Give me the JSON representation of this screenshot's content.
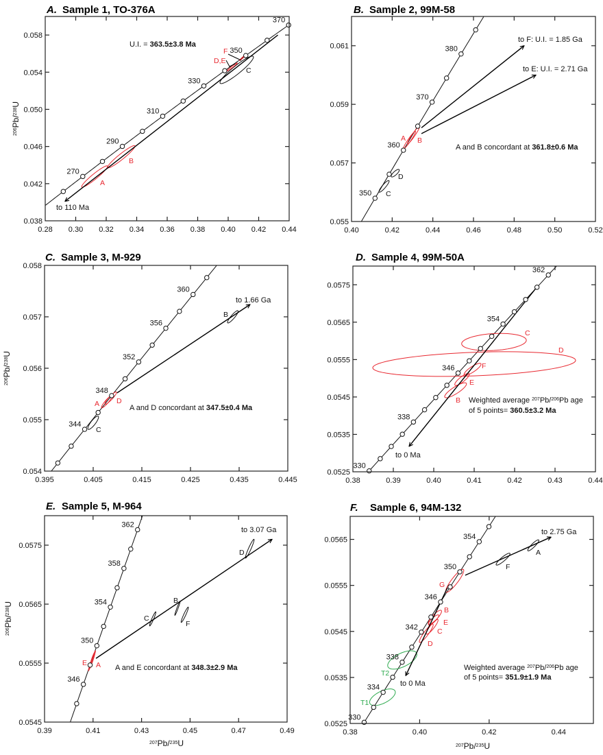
{
  "colors": {
    "data_red": "#e8272f",
    "data_black": "#111111",
    "data_green": "#2daa4e"
  },
  "chart_data": [
    {
      "type": "scatter",
      "subtype": "U-Pb concordia diagram",
      "panel_letter": "A.",
      "title": "Sample 1, TO-376A",
      "xlim": [
        0.28,
        0.44
      ],
      "ylim": [
        0.038,
        0.06
      ],
      "xticks": [
        "0.28",
        "0.30",
        "0.32",
        "0.34",
        "0.36",
        "0.38",
        "0.40",
        "0.42",
        "0.44"
      ],
      "yticks": [
        "0.038",
        "0.042",
        "0.046",
        "0.050",
        "0.054",
        "0.058"
      ],
      "ylabel": [
        {
          "t": "206",
          "sup": true
        },
        {
          "t": "Pb/"
        },
        {
          "t": "238",
          "sup": true
        },
        {
          "t": "U"
        }
      ],
      "xlabel": [],
      "concordia": {
        "ages_ma": [
          260,
          270,
          280,
          290,
          300,
          310,
          320,
          330,
          340,
          350,
          360,
          370
        ],
        "labeled_ages": [
          "270",
          "290",
          "310",
          "330",
          "350",
          "370"
        ]
      },
      "ellipses": [
        {
          "label": "A",
          "x": 0.3124,
          "y": 0.04277,
          "sx": 0.0085,
          "sy": 0.00115,
          "rho": 0.95,
          "color": "#e8272f"
        },
        {
          "label": "B",
          "x": 0.3299,
          "y": 0.0449,
          "sx": 0.009,
          "sy": 0.0012,
          "rho": 0.95,
          "color": "#e8272f"
        },
        {
          "label": "C",
          "x": 0.4056,
          "y": 0.05425,
          "sx": 0.011,
          "sy": 0.00148,
          "rho": 0.93,
          "color": "#111111"
        },
        {
          "label": "D,E",
          "x": 0.4025,
          "y": 0.05455,
          "sx": 0.0035,
          "sy": 0.00045,
          "rho": 0.98,
          "color": "#e8272f"
        },
        {
          "label": "F",
          "x": 0.4094,
          "y": 0.05555,
          "sx": 0.002,
          "sy": 0.0003,
          "rho": 0.97,
          "color": "#e8272f"
        }
      ],
      "lines": [
        {
          "from": [
            0.4326,
            0.058
          ],
          "to": [
            0.293,
            0.0401
          ],
          "arrow": true
        }
      ],
      "annotations": [
        [
          {
            "t": "U.I. = "
          },
          {
            "t": "363.5±3.8 Ma",
            "b": true
          }
        ],
        [
          {
            "t": "to 110 Ma"
          }
        ]
      ]
    },
    {
      "type": "scatter",
      "subtype": "U-Pb concordia diagram",
      "panel_letter": "B.",
      "title": "Sample 2, 99M-58",
      "xlim": [
        0.4,
        0.52
      ],
      "ylim": [
        0.055,
        0.062
      ],
      "xticks": [
        "0.40",
        "0.42",
        "0.44",
        "0.46",
        "0.48",
        "0.50",
        "0.52"
      ],
      "yticks": [
        "0.055",
        "0.057",
        "0.059",
        "0.061"
      ],
      "ylabel": [],
      "xlabel": [],
      "concordia": {
        "ages_ma": [
          350,
          355,
          360,
          365,
          370,
          375,
          380,
          385
        ],
        "labeled_ages": [
          "350",
          "360",
          "370",
          "380"
        ]
      },
      "ellipses": [
        {
          "label": "A",
          "x": 0.4285,
          "y": 0.05778,
          "sx": 0.003,
          "sy": 0.0003,
          "rho": 0.96,
          "color": "#e8272f"
        },
        {
          "label": "B",
          "x": 0.4305,
          "y": 0.05795,
          "sx": 0.003,
          "sy": 0.0003,
          "rho": 0.96,
          "color": "#e8272f"
        },
        {
          "label": "C",
          "x": 0.416,
          "y": 0.0562,
          "sx": 0.0025,
          "sy": 0.0002,
          "rho": 0.9,
          "color": "#111111"
        },
        {
          "label": "D",
          "x": 0.4215,
          "y": 0.05665,
          "sx": 0.002,
          "sy": 0.00013,
          "rho": 0.8,
          "color": "#111111"
        }
      ],
      "lines": [
        {
          "from": [
            0.4344,
            0.0582
          ],
          "to": [
            0.4849,
            0.061
          ],
          "arrow": true
        },
        {
          "from": [
            0.4344,
            0.058
          ],
          "to": [
            0.4907,
            0.06
          ],
          "arrow": true
        }
      ],
      "annotations": [
        [
          {
            "t": "to F: U.I. = 1.85 Ga"
          }
        ],
        [
          {
            "t": "to E: U.I. = 2.71 Ga"
          }
        ],
        [
          {
            "t": "A and B concordant at "
          },
          {
            "t": "361.8±0.6 Ma",
            "b": true
          }
        ]
      ]
    },
    {
      "type": "scatter",
      "subtype": "U-Pb concordia diagram",
      "panel_letter": "C.",
      "title": "Sample 3, M-929",
      "xlim": [
        0.395,
        0.445
      ],
      "ylim": [
        0.054,
        0.058
      ],
      "xticks": [
        "0.395",
        "0.405",
        "0.415",
        "0.425",
        "0.435",
        "0.445"
      ],
      "yticks": [
        "0.054",
        "0.055",
        "0.056",
        "0.057",
        "0.058"
      ],
      "ylabel": [
        {
          "t": "206",
          "sup": true
        },
        {
          "t": "Pb/"
        },
        {
          "t": "238",
          "sup": true
        },
        {
          "t": "U"
        }
      ],
      "xlabel": [],
      "concordia": {
        "ages_ma": [
          340,
          342,
          344,
          346,
          348,
          350,
          352,
          354,
          356,
          358,
          360,
          362
        ],
        "labeled_ages": [
          "344",
          "348",
          "352",
          "356",
          "360"
        ]
      },
      "ellipses": [
        {
          "label": "A",
          "x": 0.4078,
          "y": 0.05535,
          "sx": 0.0011,
          "sy": 0.00012,
          "rho": 0.92,
          "color": "#e8272f"
        },
        {
          "label": "D",
          "x": 0.4086,
          "y": 0.05542,
          "sx": 0.0012,
          "sy": 0.00012,
          "rho": 0.92,
          "color": "#e8272f"
        },
        {
          "label": "C",
          "x": 0.405,
          "y": 0.05494,
          "sx": 0.0011,
          "sy": 0.00013,
          "rho": 0.85,
          "color": "#111111"
        },
        {
          "label": "B",
          "x": 0.4337,
          "y": 0.057,
          "sx": 0.0011,
          "sy": 0.00012,
          "rho": 0.9,
          "color": "#111111"
        }
      ],
      "lines": [
        {
          "from": [
            0.4099,
            0.05552
          ],
          "to": [
            0.43725,
            0.05724
          ],
          "arrow": true
        }
      ],
      "annotations": [
        [
          {
            "t": "to 1.66 Ga"
          }
        ],
        [
          {
            "t": "A and D concordant at "
          },
          {
            "t": "347.5±0.4 Ma",
            "b": true
          }
        ]
      ]
    },
    {
      "type": "scatter",
      "subtype": "U-Pb concordia diagram",
      "panel_letter": "D.",
      "title": "Sample 4, 99M-50A",
      "xlim": [
        0.38,
        0.44
      ],
      "ylim": [
        0.0525,
        0.058
      ],
      "xticks": [
        "0.38",
        "0.39",
        "0.40",
        "0.41",
        "0.42",
        "0.43",
        "0.44"
      ],
      "yticks": [
        "0.0525",
        "0.0535",
        "0.0545",
        "0.0555",
        "0.0565",
        "0.0575"
      ],
      "ylabel": [],
      "xlabel": [],
      "concordia": {
        "ages_ma": [
          330,
          332,
          334,
          336,
          338,
          340,
          342,
          344,
          346,
          348,
          350,
          352,
          354,
          356,
          358,
          360,
          362
        ],
        "labeled_ages": [
          "330",
          "338",
          "346",
          "354",
          "362"
        ]
      },
      "ellipses": [
        {
          "label": "C",
          "x": 0.4149,
          "y": 0.05597,
          "sx": 0.008,
          "sy": 0.00023,
          "rho": 0.2,
          "color": "#e8272f"
        },
        {
          "label": "D",
          "x": 0.41,
          "y": 0.05538,
          "sx": 0.0251,
          "sy": 0.00033,
          "rho": 0.3,
          "color": "#e8272f"
        },
        {
          "label": "F",
          "x": 0.4096,
          "y": 0.05524,
          "sx": 0.0021,
          "sy": 0.00016,
          "rho": 0.85,
          "color": "#e8272f"
        },
        {
          "label": "E",
          "x": 0.407,
          "y": 0.05497,
          "sx": 0.0018,
          "sy": 0.00016,
          "rho": 0.85,
          "color": "#e8272f"
        },
        {
          "label": "B",
          "x": 0.4054,
          "y": 0.05468,
          "sx": 0.0027,
          "sy": 0.0002,
          "rho": 0.85,
          "color": "#e8272f"
        }
      ],
      "lines": [
        {
          "from": [
            0.4253,
            0.05741
          ],
          "to": [
            0.3939,
            0.05318
          ],
          "arrow": true
        }
      ],
      "annotations": [
        [
          {
            "t": "to 0 Ma"
          }
        ],
        [
          {
            "t": "Weighted average "
          },
          {
            "t": "207",
            "sup": true
          },
          {
            "t": "Pb/"
          },
          {
            "t": "206",
            "sup": true
          },
          {
            "t": "Pb age"
          }
        ],
        [
          {
            "t": "of 5 points= "
          },
          {
            "t": "360.5±3.2 Ma",
            "b": true
          }
        ]
      ]
    },
    {
      "type": "scatter",
      "subtype": "U-Pb concordia diagram",
      "panel_letter": "E.",
      "title": "Sample 5, M-964",
      "xlim": [
        0.39,
        0.49
      ],
      "ylim": [
        0.0545,
        0.058
      ],
      "xticks": [
        "0.39",
        "0.41",
        "0.43",
        "0.45",
        "0.47",
        "0.49"
      ],
      "yticks": [
        "0.0545",
        "0.0555",
        "0.0565",
        "0.0575"
      ],
      "ylabel": [
        {
          "t": "206",
          "sup": true
        },
        {
          "t": "Pb/"
        },
        {
          "t": "238",
          "sup": true
        },
        {
          "t": "U"
        }
      ],
      "xlabel": [
        {
          "t": "207",
          "sup": true
        },
        {
          "t": "Pb/"
        },
        {
          "t": "235",
          "sup": true
        },
        {
          "t": "U"
        }
      ],
      "concordia": {
        "ages_ma": [
          344,
          346,
          348,
          350,
          352,
          354,
          356,
          358,
          360,
          362
        ],
        "labeled_ages": [
          "346",
          "350",
          "354",
          "358",
          "362"
        ]
      },
      "ellipses": [
        {
          "label": "E",
          "x": 0.4093,
          "y": 0.05552,
          "sx": 0.0012,
          "sy": 0.00015,
          "rho": 0.97,
          "color": "#e8272f"
        },
        {
          "label": "A",
          "x": 0.4098,
          "y": 0.05556,
          "sx": 0.0012,
          "sy": 0.00015,
          "rho": 0.97,
          "color": "#e8272f"
        },
        {
          "label": "C",
          "x": 0.4346,
          "y": 0.05625,
          "sx": 0.0013,
          "sy": 0.00012,
          "rho": 0.95,
          "color": "#111111"
        },
        {
          "label": "B",
          "x": 0.4448,
          "y": 0.05643,
          "sx": 0.0011,
          "sy": 0.00012,
          "rho": 0.97,
          "color": "#111111"
        },
        {
          "label": "F",
          "x": 0.4478,
          "y": 0.05632,
          "sx": 0.0015,
          "sy": 0.00013,
          "rho": 0.95,
          "color": "#111111"
        },
        {
          "label": "D",
          "x": 0.4746,
          "y": 0.05744,
          "sx": 0.0018,
          "sy": 0.00016,
          "rho": 0.95,
          "color": "#111111"
        }
      ],
      "lines": [
        {
          "from": [
            0.4112,
            0.05558
          ],
          "to": [
            0.4838,
            0.0576
          ],
          "arrow": true
        }
      ],
      "annotations": [
        [
          {
            "t": "to 3.07 Ga"
          }
        ],
        [
          {
            "t": "A and E concordant at "
          },
          {
            "t": "348.3±2.9 Ma",
            "b": true
          }
        ]
      ]
    },
    {
      "type": "scatter",
      "subtype": "U-Pb concordia diagram",
      "panel_letter": "F.",
      "title": "Sample 6, 94M-132",
      "xlim": [
        0.38,
        0.45
      ],
      "ylim": [
        0.0525,
        0.057
      ],
      "xticks": [
        "0.38",
        "0.40",
        "0.42",
        "0.44"
      ],
      "yticks": [
        "0.0525",
        "0.0535",
        "0.0545",
        "0.0555",
        "0.0565"
      ],
      "ylabel": [],
      "xlabel": [
        {
          "t": "207",
          "sup": true
        },
        {
          "t": "Pb/"
        },
        {
          "t": "235",
          "sup": true
        },
        {
          "t": "U"
        }
      ],
      "concordia": {
        "ages_ma": [
          330,
          332,
          334,
          336,
          338,
          340,
          342,
          344,
          346,
          348,
          350,
          352,
          354,
          356
        ],
        "labeled_ages": [
          "330",
          "334",
          "338",
          "342",
          "346",
          "350",
          "354"
        ]
      },
      "ellipses": [
        {
          "label": "G",
          "x": 0.4101,
          "y": 0.0556,
          "sx": 0.0026,
          "sy": 0.00025,
          "rho": 0.9,
          "color": "#e8272f"
        },
        {
          "label": "B",
          "x": 0.4044,
          "y": 0.05481,
          "sx": 0.0019,
          "sy": 0.00015,
          "rho": 0.85,
          "color": "#e8272f"
        },
        {
          "label": "E",
          "x": 0.404,
          "y": 0.05475,
          "sx": 0.0015,
          "sy": 0.00011,
          "rho": 0.85,
          "color": "#e8272f"
        },
        {
          "label": "C",
          "x": 0.4036,
          "y": 0.0546,
          "sx": 0.0017,
          "sy": 0.00016,
          "rho": 0.9,
          "color": "#e8272f"
        },
        {
          "label": "D",
          "x": 0.4019,
          "y": 0.05446,
          "sx": 0.002,
          "sy": 0.0002,
          "rho": 0.92,
          "color": "#e8272f"
        },
        {
          "label": "T2",
          "x": 0.395,
          "y": 0.05388,
          "sx": 0.0042,
          "sy": 0.0002,
          "rho": 0.6,
          "color": "#2daa4e"
        },
        {
          "label": "T1",
          "x": 0.3893,
          "y": 0.05307,
          "sx": 0.0037,
          "sy": 0.00018,
          "rho": 0.6,
          "color": "#2daa4e"
        },
        {
          "label": "F",
          "x": 0.424,
          "y": 0.05607,
          "sx": 0.002,
          "sy": 0.00013,
          "rho": 0.9,
          "color": "#111111"
        },
        {
          "label": "A",
          "x": 0.4327,
          "y": 0.05637,
          "sx": 0.0016,
          "sy": 0.00012,
          "rho": 0.9,
          "color": "#111111"
        }
      ],
      "lines": [
        {
          "from": [
            0.4131,
            0.05572
          ],
          "to": [
            0.4378,
            0.05655
          ],
          "arrow": true
        },
        {
          "from": [
            0.408,
            0.05545
          ],
          "to": [
            0.396,
            0.05354
          ],
          "arrow": true
        }
      ],
      "annotations": [
        [
          {
            "t": "to 2.75 Ga"
          }
        ],
        [
          {
            "t": "to 0 Ma"
          }
        ],
        [
          {
            "t": "Weighted average "
          },
          {
            "t": "207",
            "sup": true
          },
          {
            "t": "Pb/"
          },
          {
            "t": "206",
            "sup": true
          },
          {
            "t": "Pb age"
          }
        ],
        [
          {
            "t": "of 5 points= "
          },
          {
            "t": "351.9±1.9 Ma",
            "b": true
          }
        ]
      ]
    }
  ]
}
